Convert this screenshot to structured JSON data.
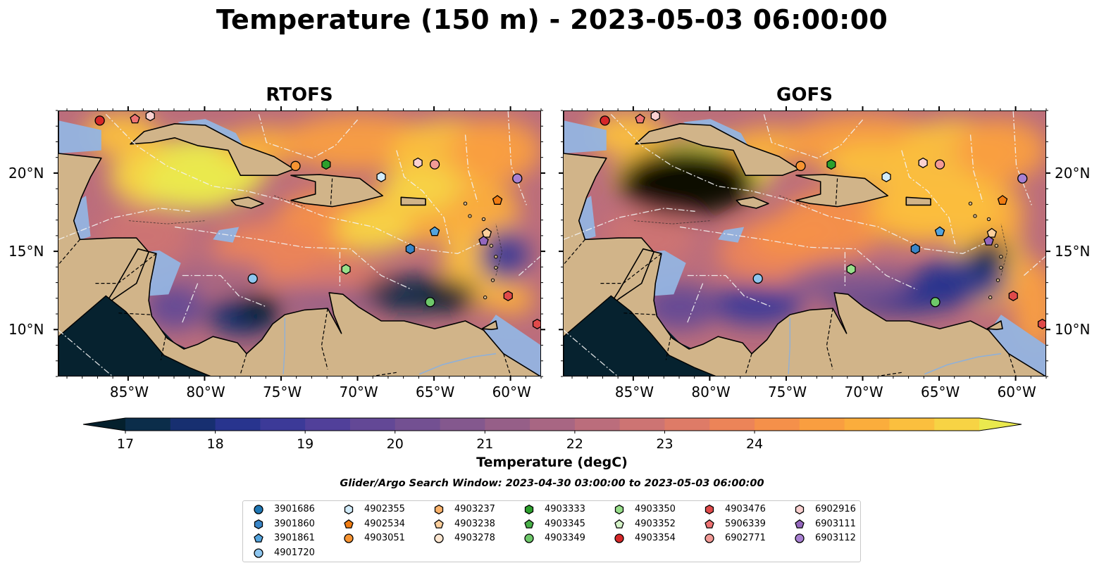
{
  "title": "Temperature (150 m) - 2023-05-03 06:00:00",
  "panels": [
    {
      "title": "RTOFS"
    },
    {
      "title": "GOFS"
    }
  ],
  "axes": {
    "x_tick_labels": [
      "85°W",
      "80°W",
      "75°W",
      "70°W",
      "65°W",
      "60°W"
    ],
    "y_tick_labels": [
      "20°N",
      "15°N",
      "10°N"
    ],
    "xlim": [
      -89.6,
      -58.0
    ],
    "ylim": [
      7.0,
      24.0
    ]
  },
  "colorbar": {
    "label": "Temperature (degC)",
    "ticks": [
      "17",
      "18",
      "19",
      "20",
      "21",
      "22",
      "23",
      "24"
    ],
    "range": [
      16.75,
      24.5
    ],
    "colors": [
      "#04202d",
      "#0b2d4a",
      "#172f70",
      "#28348e",
      "#3c3a98",
      "#51409a",
      "#634896",
      "#735092",
      "#84588e",
      "#965f88",
      "#a86683",
      "#bb6d7c",
      "#cd7473",
      "#de7b67",
      "#ec8458",
      "#f5904a",
      "#f99e40",
      "#fbad3c",
      "#fbbf3e",
      "#f7d344",
      "#eae94e"
    ]
  },
  "colors": {
    "land": "#d1b489",
    "shelf": "#94b4e2",
    "ocean_deep": "#2a2a6a"
  },
  "search_window": "Glider/Argo Search Window: 2023-04-30 03:00:00 to 2023-05-03 06:00:00",
  "legend": {
    "columns": [
      [
        {
          "id": "3901686",
          "marker": "circle",
          "color": "#1f77b4"
        },
        {
          "id": "3901860",
          "marker": "hexagon",
          "color": "#3a86c8"
        },
        {
          "id": "3901861",
          "marker": "pentagon",
          "color": "#54a4de"
        },
        {
          "id": "4901720",
          "marker": "circle",
          "color": "#8ec6ef"
        }
      ],
      [
        {
          "id": "4902355",
          "marker": "hexagon",
          "color": "#d2ecfb"
        },
        {
          "id": "4902534",
          "marker": "pentagon",
          "color": "#f07c12"
        },
        {
          "id": "4903051",
          "marker": "circle",
          "color": "#f79432"
        }
      ],
      [
        {
          "id": "4903237",
          "marker": "hexagon",
          "color": "#fbb26a"
        },
        {
          "id": "4903238",
          "marker": "pentagon",
          "color": "#fccf9c"
        },
        {
          "id": "4903278",
          "marker": "circle",
          "color": "#fde6d0"
        }
      ],
      [
        {
          "id": "4903333",
          "marker": "hexagon",
          "color": "#2ca02c"
        },
        {
          "id": "4903345",
          "marker": "pentagon",
          "color": "#48b048"
        },
        {
          "id": "4903349",
          "marker": "circle",
          "color": "#6ec86a"
        }
      ],
      [
        {
          "id": "4903350",
          "marker": "hexagon",
          "color": "#98df8a"
        },
        {
          "id": "4903352",
          "marker": "pentagon",
          "color": "#d5f3c8"
        },
        {
          "id": "4903354",
          "marker": "circle",
          "color": "#d62728"
        }
      ],
      [
        {
          "id": "4903476",
          "marker": "hexagon",
          "color": "#e04a4a"
        },
        {
          "id": "5906339",
          "marker": "pentagon",
          "color": "#ee7272"
        },
        {
          "id": "6902771",
          "marker": "circle",
          "color": "#f29a96"
        }
      ],
      [
        {
          "id": "6902916",
          "marker": "hexagon",
          "color": "#fad1d0"
        },
        {
          "id": "6903111",
          "marker": "pentagon",
          "color": "#9467bd"
        },
        {
          "id": "6903112",
          "marker": "circle",
          "color": "#a880d2"
        }
      ]
    ]
  },
  "floats": [
    {
      "id": "4903354",
      "lon": -86.9,
      "lat": 23.4
    },
    {
      "id": "5906339",
      "lon": -84.6,
      "lat": 23.5
    },
    {
      "id": "6902916",
      "lon": -83.6,
      "lat": 23.7
    },
    {
      "id": "4903051",
      "lon": -74.1,
      "lat": 20.5
    },
    {
      "id": "4903333",
      "lon": -72.1,
      "lat": 20.6
    },
    {
      "id": "4902355",
      "lon": -68.5,
      "lat": 19.8
    },
    {
      "id": "6902916",
      "lon": -66.1,
      "lat": 20.7
    },
    {
      "id": "6902771",
      "lon": -65.0,
      "lat": 20.6
    },
    {
      "id": "6903112",
      "lon": -59.6,
      "lat": 19.7
    },
    {
      "id": "4902534",
      "lon": -60.9,
      "lat": 18.3
    },
    {
      "id": "3901861",
      "lon": -65.0,
      "lat": 16.3
    },
    {
      "id": "4903238",
      "lon": -61.6,
      "lat": 16.2
    },
    {
      "id": "6903111",
      "lon": -61.8,
      "lat": 15.7
    },
    {
      "id": "3901860",
      "lon": -66.6,
      "lat": 15.2
    },
    {
      "id": "4903350",
      "lon": -70.8,
      "lat": 13.9
    },
    {
      "id": "4901720",
      "lon": -76.9,
      "lat": 13.3
    },
    {
      "id": "4903349",
      "lon": -65.3,
      "lat": 11.8
    },
    {
      "id": "4903476",
      "lon": -60.2,
      "lat": 12.2
    },
    {
      "id": "4903476",
      "lon": -58.3,
      "lat": 10.4
    }
  ]
}
